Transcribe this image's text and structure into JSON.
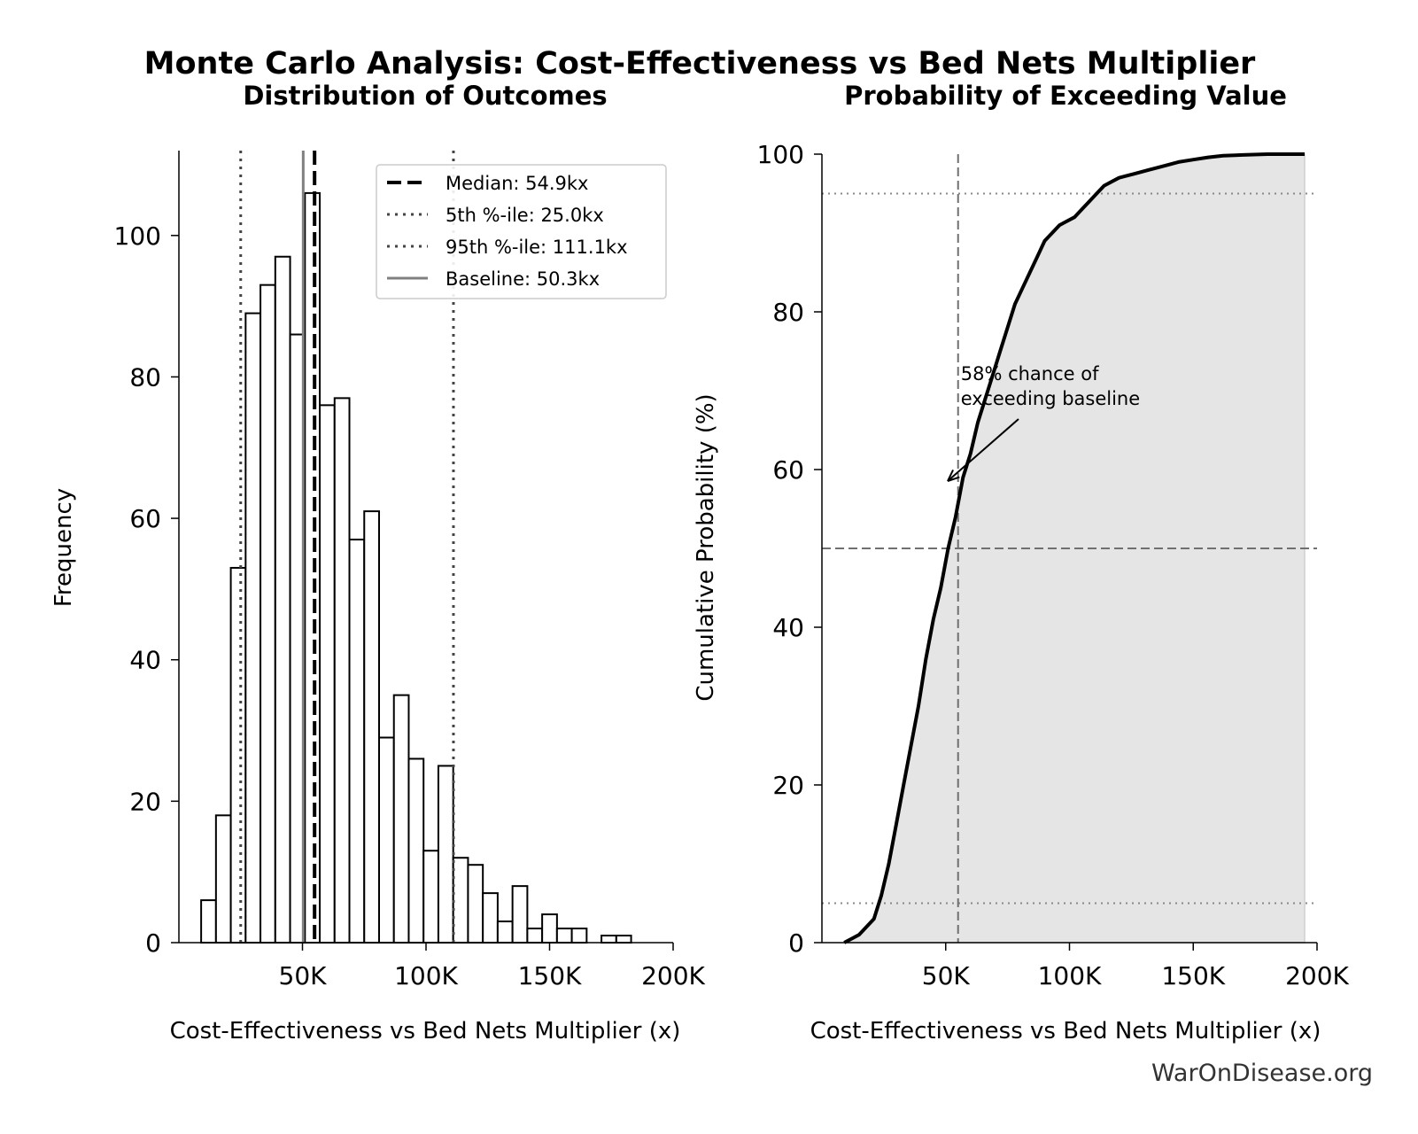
{
  "title": "Monte Carlo Analysis: Cost-Effectiveness vs Bed Nets Multiplier",
  "watermark": "WarOnDisease.org",
  "colors": {
    "bar_edge": "#000000",
    "bar_fill": "#ffffff",
    "baseline": "#808080",
    "ref_line": "#444444",
    "cdf_fill": "#e5e5e5",
    "cdf_line": "#000000"
  },
  "chart_data": [
    {
      "type": "bar",
      "title": "Distribution of Outcomes",
      "xlabel": "Cost-Effectiveness vs Bed Nets Multiplier (x)",
      "ylabel": "Frequency",
      "xlim": [
        0,
        200000
      ],
      "ylim": [
        0,
        112
      ],
      "x_ticks": [
        50000,
        100000,
        150000,
        200000
      ],
      "x_tick_labels": [
        "50K",
        "100K",
        "150K",
        "200K"
      ],
      "y_ticks": [
        0,
        20,
        40,
        60,
        80,
        100
      ],
      "y_tick_labels": [
        "0",
        "20",
        "40",
        "60",
        "80",
        "100"
      ],
      "bin_width": 6000,
      "bin_start": 9000,
      "values": [
        6,
        18,
        53,
        89,
        93,
        97,
        86,
        106,
        76,
        77,
        57,
        61,
        29,
        35,
        26,
        13,
        25,
        12,
        11,
        7,
        3,
        8,
        2,
        4,
        2,
        2,
        0,
        1,
        1
      ],
      "ref_lines": [
        {
          "name": "Median: 54.9kx",
          "x": 54900,
          "style": "dashed"
        },
        {
          "name": "5th %-ile: 25.0kx",
          "x": 25000,
          "style": "dotted"
        },
        {
          "name": "95th %-ile: 111.1kx",
          "x": 111100,
          "style": "dotted"
        },
        {
          "name": "Baseline: 50.3kx",
          "x": 50300,
          "style": "solid"
        }
      ],
      "legend_position": "top-right",
      "grid": false
    },
    {
      "type": "area",
      "title": "Probability of Exceeding Value",
      "xlabel": "Cost-Effectiveness vs Bed Nets Multiplier (x)",
      "ylabel": "Cumulative Probability (%)",
      "xlim": [
        0,
        200000
      ],
      "ylim": [
        0,
        100
      ],
      "x_ticks": [
        50000,
        100000,
        150000,
        200000
      ],
      "x_tick_labels": [
        "50K",
        "100K",
        "150K",
        "200K"
      ],
      "y_ticks": [
        0,
        20,
        40,
        60,
        80,
        100
      ],
      "y_tick_labels": [
        "0",
        "20",
        "40",
        "60",
        "80",
        "100"
      ],
      "x": [
        9000,
        15000,
        21000,
        24000,
        27000,
        30000,
        33000,
        36000,
        39000,
        42000,
        45000,
        48000,
        51000,
        54000,
        57000,
        60000,
        63000,
        66000,
        69000,
        72000,
        75000,
        78000,
        81000,
        84000,
        87000,
        90000,
        93000,
        96000,
        99000,
        102000,
        105000,
        108000,
        111000,
        114000,
        120000,
        126000,
        132000,
        138000,
        144000,
        150000,
        156000,
        162000,
        170000,
        180000,
        195000
      ],
      "y": [
        0,
        1,
        3,
        6,
        10,
        15,
        20,
        25,
        30,
        36,
        41,
        45,
        50,
        54,
        59,
        62,
        66,
        69,
        72,
        75,
        78,
        81,
        83,
        85,
        87,
        89,
        90,
        91,
        91.5,
        92,
        93,
        94,
        95,
        96,
        97,
        97.5,
        98,
        98.5,
        99,
        99.3,
        99.6,
        99.8,
        99.9,
        100,
        100
      ],
      "hlines": [
        95,
        50,
        5
      ],
      "vline_x": 55000,
      "annotation": "58% chance of\nexceeding baseline",
      "grid": false
    }
  ]
}
